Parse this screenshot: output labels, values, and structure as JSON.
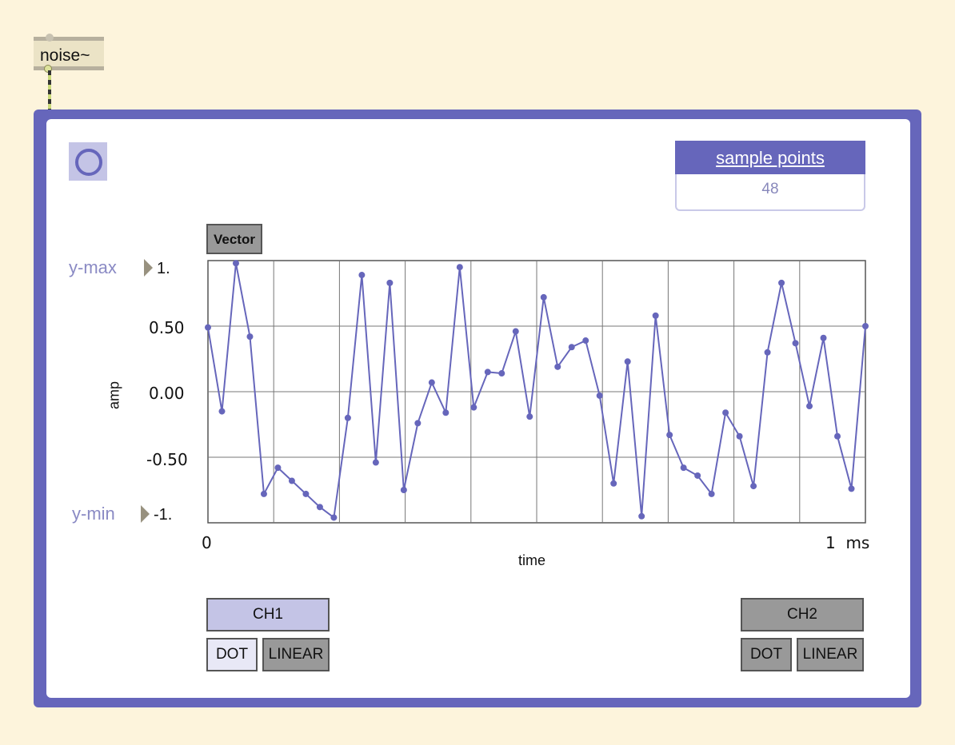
{
  "object": {
    "label": "noise~"
  },
  "sample_points": {
    "header": "sample points",
    "value": "48"
  },
  "plot": {
    "vector_label": "Vector",
    "y_max_label": "y-max",
    "y_max_value": "1.",
    "y_min_label": "y-min",
    "y_min_value": "-1.",
    "y_ticks": [
      "0.50",
      "0.00",
      "-0.50"
    ],
    "x_start": "0",
    "x_end": "1  ms",
    "x_axis_label": "time",
    "y_axis_label": "amp"
  },
  "channels": {
    "ch1": {
      "label": "CH1",
      "dot": "DOT",
      "linear": "LINEAR"
    },
    "ch2": {
      "label": "CH2",
      "dot": "DOT",
      "linear": "LINEAR"
    }
  },
  "colors": {
    "accent": "#6666bb",
    "background": "#fdf4dc",
    "line": "#6666bb"
  },
  "chart_data": {
    "type": "line",
    "xlabel": "time",
    "ylabel": "amp",
    "xlim": [
      0,
      1
    ],
    "ylim": [
      -1,
      1
    ],
    "grid": true,
    "x_unit": "ms",
    "series": [
      {
        "values": [
          0.49,
          -0.15,
          0.98,
          0.42,
          -0.78,
          -0.58,
          -0.68,
          -0.78,
          -0.88,
          -0.96,
          -0.2,
          0.89,
          -0.54,
          0.83,
          -0.75,
          -0.24,
          0.07,
          -0.16,
          0.95,
          -0.12,
          0.15,
          0.14,
          0.46,
          -0.19,
          0.72,
          0.19,
          0.34,
          0.39,
          -0.03,
          -0.7,
          0.23,
          -0.95,
          0.58,
          -0.33,
          -0.58,
          -0.64,
          -0.78,
          -0.16,
          -0.34,
          -0.72,
          0.3,
          0.83,
          0.37,
          -0.11,
          0.41,
          -0.34,
          -0.74,
          0.5
        ]
      }
    ]
  }
}
